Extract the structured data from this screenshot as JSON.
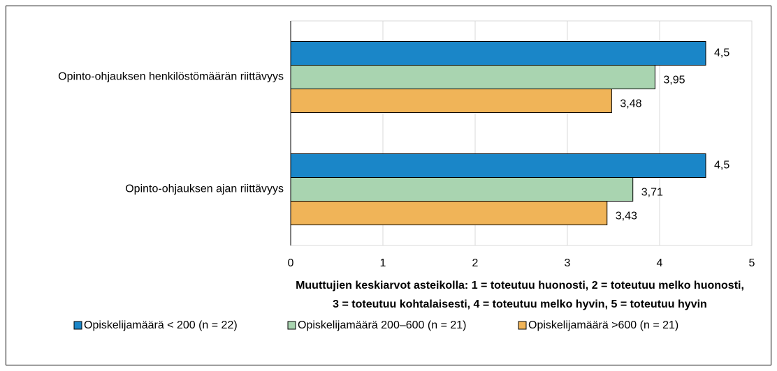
{
  "chart_data": {
    "type": "bar",
    "orientation": "horizontal",
    "categories": [
      "Opinto-ohjauksen henkilöstömäärän riittävyys",
      "Opinto-ohjauksen ajan riittävyys"
    ],
    "series": [
      {
        "name": "Opiskelijamäärä < 200 (n = 22)",
        "color": "#1a86c8",
        "values": [
          4.5,
          4.5
        ],
        "value_labels": [
          "4,5",
          "4,5"
        ]
      },
      {
        "name": "Opiskelijamäärä 200–600 (n = 21)",
        "color": "#a9d4b0",
        "values": [
          3.95,
          3.71
        ],
        "value_labels": [
          "3,95",
          "3,71"
        ]
      },
      {
        "name": "Opiskelijamäärä >600 (n = 21)",
        "color": "#f0b458",
        "values": [
          3.48,
          3.43
        ],
        "value_labels": [
          "3,48",
          "3,43"
        ]
      }
    ],
    "xlim": [
      0,
      5
    ],
    "xticks": [
      0,
      1,
      2,
      3,
      4,
      5
    ],
    "grid": true,
    "legend": "bottom",
    "xlabel_lines": [
      "Muuttujien keskiarvot asteikolla: 1 = toteutuu huonosti, 2 = toteutuu melko huonosti,",
      "3 = toteutuu kohtalaisesti, 4 = toteutuu melko hyvin, 5 = toteutuu hyvin"
    ]
  }
}
